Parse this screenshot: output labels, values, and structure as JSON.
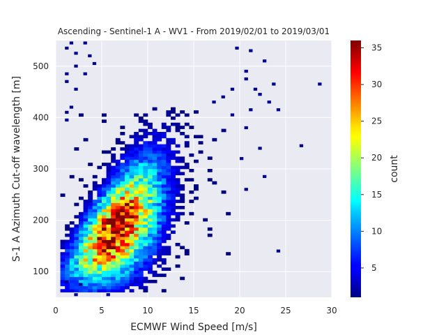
{
  "chart_data": {
    "type": "heatmap",
    "title": "Ascending - Sentinel-1 A - WV1 - From 2019/02/01 to 2019/03/01",
    "xlabel": "ECMWF Wind Speed [m/s]",
    "ylabel": "S-1 A Azimuth Cut-off wavelength [m]",
    "xlim": [
      0,
      30
    ],
    "ylim": [
      50,
      550
    ],
    "xticks": [
      0,
      5,
      10,
      15,
      20,
      25,
      30
    ],
    "yticks": [
      100,
      200,
      300,
      400,
      500
    ],
    "grid": true,
    "colorbar": {
      "label": "count",
      "min": 1,
      "max": 36,
      "ticks": [
        5,
        10,
        15,
        20,
        25,
        30,
        35
      ],
      "colormap": "jet"
    },
    "bin_width_x": 0.5,
    "bin_width_y": 6,
    "density_trend": {
      "peak_x": 6.5,
      "peak_y": 180,
      "peak_count": 36,
      "slope_m_per_ms": 14,
      "intercept_m": 90
    },
    "outlier_points": [
      [
        1.5,
        545
      ],
      [
        3,
        545
      ],
      [
        1,
        535
      ],
      [
        2,
        525
      ],
      [
        2,
        500
      ],
      [
        1,
        485
      ],
      [
        3,
        485
      ],
      [
        1,
        470
      ],
      [
        2,
        455
      ],
      [
        1.5,
        420
      ],
      [
        1,
        410
      ],
      [
        1,
        395
      ],
      [
        3.5,
        520
      ],
      [
        4,
        505
      ],
      [
        19.5,
        535
      ],
      [
        21,
        530
      ],
      [
        22.5,
        510
      ],
      [
        20.5,
        490
      ],
      [
        20.5,
        475
      ],
      [
        23.5,
        465
      ],
      [
        19,
        455
      ],
      [
        21.5,
        455
      ],
      [
        28.5,
        465
      ],
      [
        22,
        445
      ],
      [
        18,
        440
      ],
      [
        23,
        430
      ],
      [
        21,
        415
      ],
      [
        24,
        415
      ],
      [
        19,
        405
      ],
      [
        20.5,
        380
      ],
      [
        26.5,
        345
      ],
      [
        22,
        340
      ],
      [
        22.5,
        285
      ],
      [
        20.5,
        260
      ],
      [
        20,
        320
      ],
      [
        24,
        140
      ],
      [
        17,
        430
      ],
      [
        5.5,
        55
      ],
      [
        2,
        55
      ],
      [
        1,
        80
      ],
      [
        2.5,
        75
      ]
    ]
  }
}
